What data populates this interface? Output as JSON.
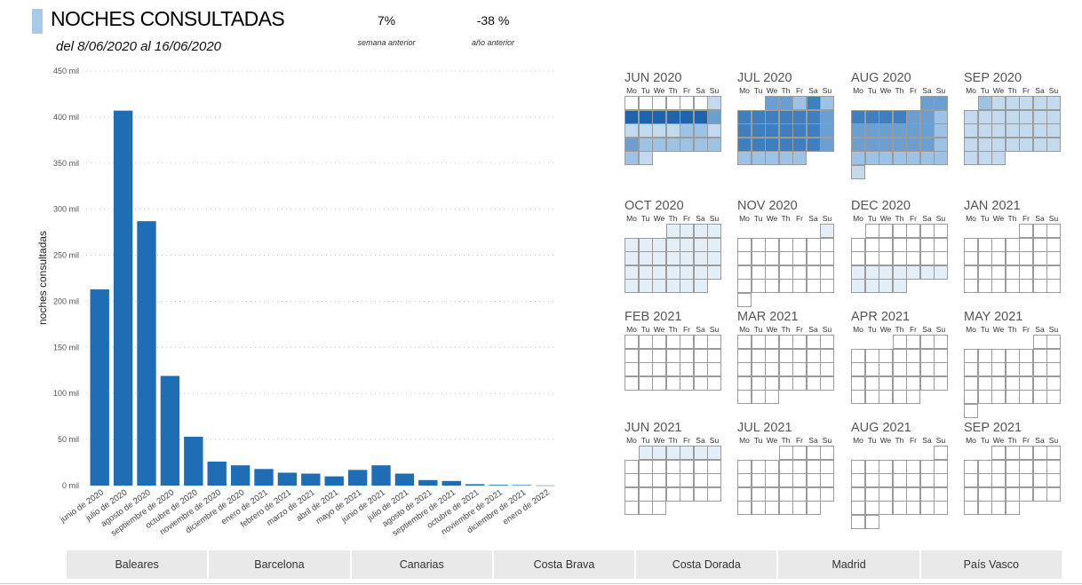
{
  "header": {
    "title": "NOCHES CONSULTADAS",
    "subtitle": "del 8/06/2020 al 16/06/2020"
  },
  "kpis": [
    {
      "value": "7%",
      "label": "semana anterior"
    },
    {
      "value": "-38 %",
      "label": "año anterior"
    }
  ],
  "colors": {
    "bar": "#1f6db5",
    "accent": "#a9c9e8",
    "cell_border": "#9b9b9b"
  },
  "chart_data": {
    "type": "bar",
    "ylabel": "noches consultadas",
    "ylim": [
      0,
      450000
    ],
    "yticks": [
      {
        "value": 0,
        "label": "0 mil"
      },
      {
        "value": 50000,
        "label": "50 mil"
      },
      {
        "value": 100000,
        "label": "100 mil"
      },
      {
        "value": 150000,
        "label": "150 mil"
      },
      {
        "value": 200000,
        "label": "200 mil"
      },
      {
        "value": 250000,
        "label": "250 mil"
      },
      {
        "value": 300000,
        "label": "300 mil"
      },
      {
        "value": 350000,
        "label": "350 mil"
      },
      {
        "value": 400000,
        "label": "400 mil"
      },
      {
        "value": 450000,
        "label": "450 mil"
      }
    ],
    "categories": [
      "junio de 2020",
      "julio de 2020",
      "agosto de 2020",
      "septiembre de 2020",
      "octubre de 2020",
      "noviembre de 2020",
      "diciembre de 2020",
      "enero de 2021",
      "febrero de 2021",
      "marzo de 2021",
      "abril de 2021",
      "mayo de 2021",
      "junio de 2021",
      "julio de 2021",
      "agosto de 2021",
      "septiembre de 2021",
      "octubre de 2021",
      "noviembre de 2021",
      "diciembre de 2021",
      "enero de 2022"
    ],
    "values": [
      213000,
      407000,
      287000,
      119000,
      53000,
      26000,
      22000,
      18000,
      14000,
      13000,
      10000,
      17000,
      22000,
      13000,
      6000,
      5000,
      1500,
      800,
      600,
      200
    ]
  },
  "calendar": {
    "day_labels": [
      "Mo",
      "Tu",
      "We",
      "Th",
      "Fr",
      "Sa",
      "Su"
    ],
    "palette": [
      "#ffffff",
      "#e4eef7",
      "#c2d9ee",
      "#9dc2e4",
      "#6a9fd0",
      "#3e7fbf",
      "#1f63ad"
    ],
    "months": [
      {
        "label": "JUN 2020",
        "start_dow": 0,
        "days": 30,
        "levels": [
          0,
          0,
          0,
          0,
          0,
          0,
          2,
          6,
          6,
          6,
          6,
          6,
          6,
          4,
          2,
          2,
          2,
          2,
          3,
          3,
          2,
          4,
          3,
          3,
          3,
          3,
          3,
          3,
          3,
          2
        ]
      },
      {
        "label": "JUL 2020",
        "start_dow": 2,
        "days": 31,
        "levels": [
          4,
          4,
          3,
          5,
          3,
          5,
          5,
          5,
          5,
          5,
          5,
          4,
          5,
          5,
          5,
          5,
          5,
          5,
          4,
          5,
          5,
          5,
          5,
          5,
          5,
          4,
          3,
          3,
          3,
          3,
          3
        ]
      },
      {
        "label": "AUG 2020",
        "start_dow": 5,
        "days": 31,
        "levels": [
          4,
          4,
          5,
          5,
          5,
          5,
          4,
          4,
          3,
          4,
          4,
          4,
          4,
          4,
          4,
          3,
          4,
          4,
          4,
          4,
          4,
          4,
          3,
          3,
          3,
          3,
          3,
          3,
          3,
          3,
          2
        ]
      },
      {
        "label": "SEP 2020",
        "start_dow": 1,
        "days": 30,
        "levels": [
          3,
          2,
          2,
          2,
          2,
          2,
          2,
          2,
          2,
          2,
          2,
          2,
          2,
          2,
          2,
          2,
          2,
          2,
          2,
          2,
          2,
          2,
          2,
          2,
          2,
          2,
          2,
          2,
          2,
          2
        ]
      },
      {
        "label": "OCT 2020",
        "start_dow": 3,
        "days": 31,
        "levels": [
          1,
          1,
          1,
          1,
          1,
          1,
          1,
          1,
          1,
          1,
          1,
          1,
          1,
          1,
          1,
          1,
          1,
          1,
          1,
          1,
          1,
          1,
          1,
          1,
          1,
          1,
          1,
          1,
          1,
          1,
          1
        ]
      },
      {
        "label": "NOV 2020",
        "start_dow": 6,
        "days": 30,
        "levels": [
          1,
          0,
          0,
          0,
          0,
          0,
          0,
          0,
          0,
          0,
          0,
          0,
          0,
          0,
          0,
          0,
          0,
          0,
          0,
          0,
          0,
          0,
          0,
          0,
          0,
          0,
          0,
          0,
          0,
          0
        ]
      },
      {
        "label": "DEC 2020",
        "start_dow": 1,
        "days": 31,
        "levels": [
          0,
          0,
          0,
          0,
          0,
          0,
          0,
          0,
          0,
          0,
          0,
          0,
          0,
          0,
          0,
          0,
          0,
          0,
          0,
          0,
          1,
          1,
          1,
          1,
          1,
          1,
          1,
          1,
          1,
          1,
          1
        ]
      },
      {
        "label": "JAN 2021",
        "start_dow": 4,
        "days": 31,
        "levels": [
          0,
          0,
          0,
          0,
          0,
          0,
          0,
          0,
          0,
          0,
          0,
          0,
          0,
          0,
          0,
          0,
          0,
          0,
          0,
          0,
          0,
          0,
          0,
          0,
          0,
          0,
          0,
          0,
          0,
          0,
          0
        ]
      },
      {
        "label": "FEB 2021",
        "start_dow": 0,
        "days": 28,
        "levels": [
          0,
          0,
          0,
          0,
          0,
          0,
          0,
          0,
          0,
          0,
          0,
          0,
          0,
          0,
          0,
          0,
          0,
          0,
          0,
          0,
          0,
          0,
          0,
          0,
          0,
          0,
          0,
          0
        ]
      },
      {
        "label": "MAR 2021",
        "start_dow": 0,
        "days": 31,
        "levels": [
          0,
          0,
          0,
          0,
          0,
          0,
          0,
          0,
          0,
          0,
          0,
          0,
          0,
          0,
          0,
          0,
          0,
          0,
          0,
          0,
          0,
          0,
          0,
          0,
          0,
          0,
          0,
          0,
          0,
          0,
          0
        ]
      },
      {
        "label": "APR 2021",
        "start_dow": 3,
        "days": 30,
        "levels": [
          0,
          0,
          0,
          0,
          0,
          0,
          0,
          0,
          0,
          0,
          0,
          0,
          0,
          0,
          0,
          0,
          0,
          0,
          0,
          0,
          0,
          0,
          0,
          0,
          0,
          0,
          0,
          0,
          0,
          0
        ]
      },
      {
        "label": "MAY 2021",
        "start_dow": 5,
        "days": 31,
        "levels": [
          0,
          0,
          0,
          0,
          0,
          0,
          0,
          0,
          0,
          0,
          0,
          0,
          0,
          0,
          0,
          0,
          0,
          0,
          0,
          0,
          0,
          0,
          0,
          0,
          0,
          0,
          0,
          0,
          0,
          0,
          0
        ]
      },
      {
        "label": "JUN 2021",
        "start_dow": 1,
        "days": 30,
        "levels": [
          1,
          1,
          1,
          1,
          1,
          1,
          0,
          0,
          0,
          0,
          0,
          0,
          0,
          0,
          0,
          0,
          0,
          0,
          0,
          0,
          0,
          0,
          0,
          0,
          0,
          0,
          0,
          0,
          0,
          0
        ]
      },
      {
        "label": "JUL 2021",
        "start_dow": 3,
        "days": 31,
        "levels": [
          0,
          0,
          0,
          0,
          0,
          0,
          0,
          0,
          0,
          0,
          0,
          0,
          0,
          0,
          0,
          0,
          0,
          0,
          0,
          0,
          0,
          0,
          0,
          0,
          0,
          0,
          0,
          0,
          0,
          0,
          0
        ]
      },
      {
        "label": "AUG 2021",
        "start_dow": 6,
        "days": 31,
        "levels": [
          0,
          0,
          0,
          0,
          0,
          0,
          0,
          0,
          0,
          0,
          0,
          0,
          0,
          0,
          0,
          0,
          0,
          0,
          0,
          0,
          0,
          0,
          0,
          0,
          0,
          0,
          0,
          0,
          0,
          0,
          0
        ]
      },
      {
        "label": "SEP 2021",
        "start_dow": 2,
        "days": 30,
        "levels": [
          0,
          0,
          0,
          0,
          0,
          0,
          0,
          0,
          0,
          0,
          0,
          0,
          0,
          0,
          0,
          0,
          0,
          0,
          0,
          0,
          0,
          0,
          0,
          0,
          0,
          0,
          0,
          0,
          0,
          0
        ]
      }
    ]
  },
  "slicer": {
    "items": [
      "Baleares",
      "Barcelona",
      "Canarias",
      "Costa Brava",
      "Costa Dorada",
      "Madrid",
      "País Vasco"
    ]
  }
}
